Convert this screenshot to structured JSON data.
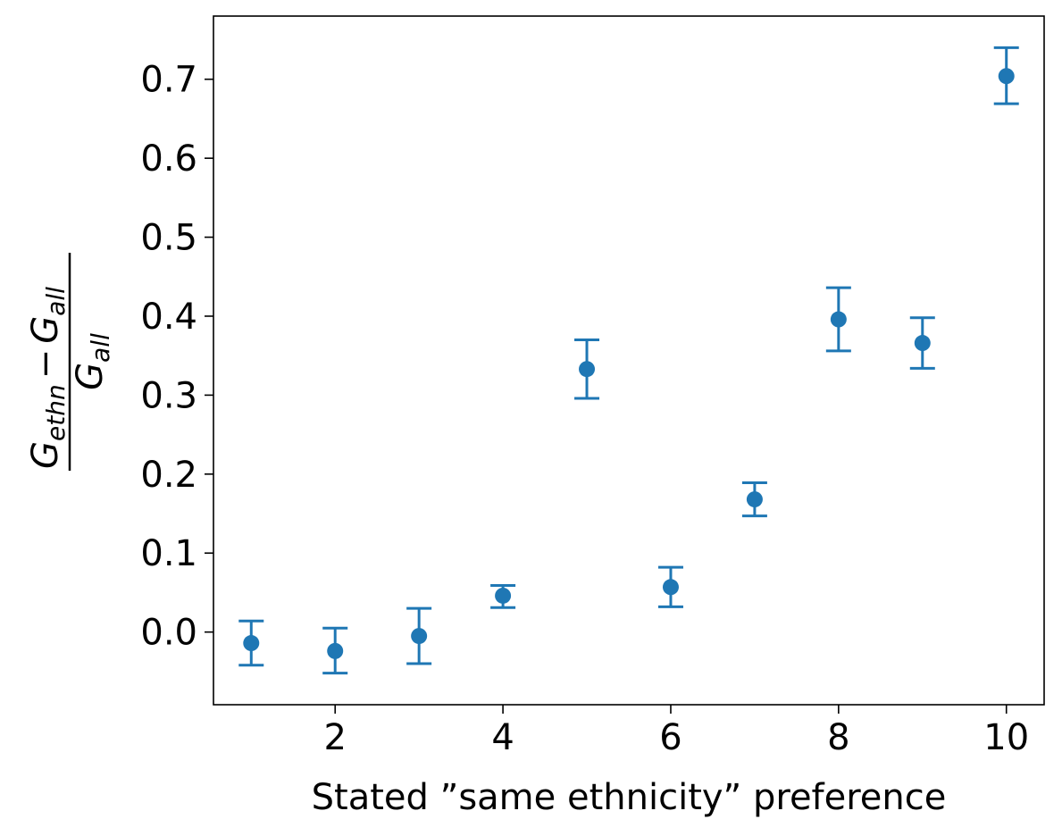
{
  "chart_data": {
    "type": "scatter",
    "xlabel": "Stated ”same ethnicity” preference",
    "ylabel": {
      "numerator_main": "G",
      "numerator_sub": "ethn",
      "operator": "−",
      "numerator_main2": "G",
      "numerator_sub2": "all",
      "denominator_main": "G",
      "denominator_sub": "all"
    },
    "xlim": [
      0.55,
      10.45
    ],
    "ylim": [
      -0.092,
      0.78
    ],
    "xticks": [
      2,
      4,
      6,
      8,
      10
    ],
    "xtick_labels": [
      "2",
      "4",
      "6",
      "8",
      "10"
    ],
    "yticks": [
      0.0,
      0.1,
      0.2,
      0.3,
      0.4,
      0.5,
      0.6,
      0.7
    ],
    "ytick_labels": [
      "0.0",
      "0.1",
      "0.2",
      "0.3",
      "0.4",
      "0.5",
      "0.6",
      "0.7"
    ],
    "grid": false,
    "color": "#1f77b4",
    "x": [
      1,
      2,
      3,
      4,
      5,
      6,
      7,
      8,
      9,
      10
    ],
    "y": [
      -0.014,
      -0.024,
      -0.005,
      0.046,
      0.333,
      0.057,
      0.168,
      0.396,
      0.366,
      0.704
    ],
    "err_lower": [
      -0.042,
      -0.052,
      -0.04,
      0.031,
      0.296,
      0.032,
      0.147,
      0.356,
      0.334,
      0.669
    ],
    "err_upper": [
      0.014,
      0.005,
      0.03,
      0.059,
      0.37,
      0.082,
      0.189,
      0.436,
      0.398,
      0.74
    ]
  }
}
